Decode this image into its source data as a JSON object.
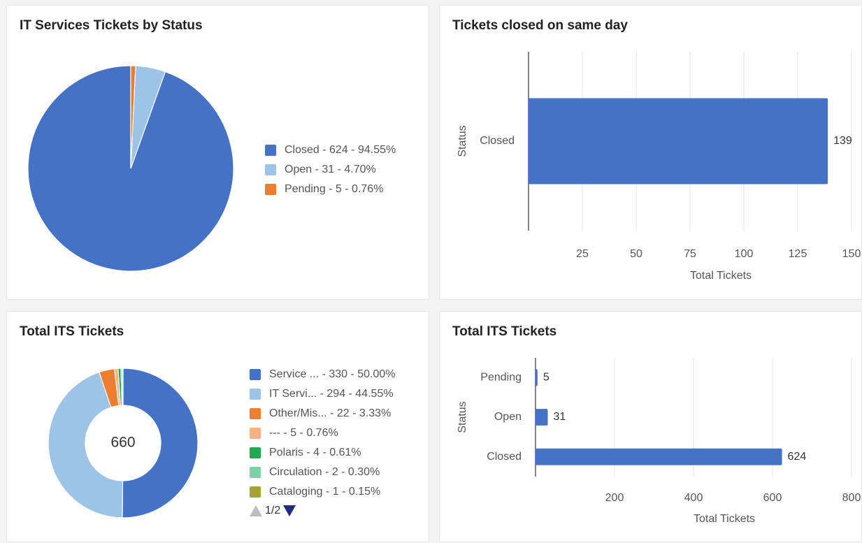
{
  "cards": {
    "pie": {
      "title": "IT Services Tickets by Status"
    },
    "same_day": {
      "title": "Tickets closed on same day"
    },
    "donut": {
      "title": "Total ITS Tickets",
      "center_total": "660"
    },
    "bar_total": {
      "title": "Total ITS Tickets"
    }
  },
  "chart_data": [
    {
      "type": "pie",
      "title": "IT Services Tickets by Status",
      "slices": [
        {
          "label": "Closed",
          "value": 624,
          "percent": "94.55%",
          "color": "#4472c4"
        },
        {
          "label": "Open",
          "value": 31,
          "percent": "4.70%",
          "color": "#9dc3e6"
        },
        {
          "label": "Pending",
          "value": 5,
          "percent": "0.76%",
          "color": "#ed7d31"
        }
      ],
      "legend": [
        {
          "label": "Closed",
          "detail": " - 624 - 94.55%"
        },
        {
          "label": "Open",
          "detail": " - 31 - 4.70%"
        },
        {
          "label": "Pending",
          "detail": " - 5 - 0.76%"
        }
      ]
    },
    {
      "type": "bar",
      "orientation": "horizontal",
      "title": "Tickets closed on same day",
      "categories": [
        "Closed"
      ],
      "values": [
        139
      ],
      "data_labels": [
        "139"
      ],
      "xlabel": "Total Tickets",
      "ylabel": "Status",
      "xlim": [
        0,
        150
      ],
      "xticks": [
        25,
        50,
        75,
        100,
        125,
        150
      ],
      "grid": true,
      "color": "#4472c4"
    },
    {
      "type": "pie",
      "subtype": "donut",
      "title": "Total ITS Tickets",
      "center_label": "660",
      "slices": [
        {
          "label": "Service ...",
          "value": 330,
          "percent": "50.00%",
          "color": "#4472c4"
        },
        {
          "label": "IT Servi...",
          "value": 294,
          "percent": "44.55%",
          "color": "#9dc3e6"
        },
        {
          "label": "Other/Mis...",
          "value": 22,
          "percent": "3.33%",
          "color": "#ed7d31"
        },
        {
          "label": "---",
          "value": 5,
          "percent": "0.76%",
          "color": "#f4b183"
        },
        {
          "label": "Polaris",
          "value": 4,
          "percent": "0.61%",
          "color": "#1fa84f"
        },
        {
          "label": "Circulation",
          "value": 2,
          "percent": "0.30%",
          "color": "#7fd0a6"
        },
        {
          "label": "Cataloging",
          "value": 1,
          "percent": "0.15%",
          "color": "#a5a336"
        }
      ],
      "legend": [
        {
          "label": "Service ...",
          "detail": " - 330 - 50.00%"
        },
        {
          "label": "IT Servi...",
          "detail": " - 294 - 44.55%"
        },
        {
          "label": "Other/Mis...",
          "detail": " - 22 - 3.33%"
        },
        {
          "label": "---",
          "detail": " - 5 - 0.76%"
        },
        {
          "label": "Polaris",
          "detail": " - 4 - 0.61%"
        },
        {
          "label": "Circulation",
          "detail": " - 2 - 0.30%"
        },
        {
          "label": "Cataloging",
          "detail": " - 1 - 0.15%"
        }
      ],
      "pager": "1/2"
    },
    {
      "type": "bar",
      "orientation": "horizontal",
      "title": "Total ITS Tickets",
      "categories": [
        "Pending",
        "Open",
        "Closed"
      ],
      "values": [
        5,
        31,
        624
      ],
      "data_labels": [
        "5",
        "31",
        "624"
      ],
      "xlabel": "Total Tickets",
      "ylabel": "Status",
      "xlim": [
        0,
        800
      ],
      "xticks": [
        200,
        400,
        600,
        800
      ],
      "grid": true,
      "color": "#4472c4"
    }
  ]
}
